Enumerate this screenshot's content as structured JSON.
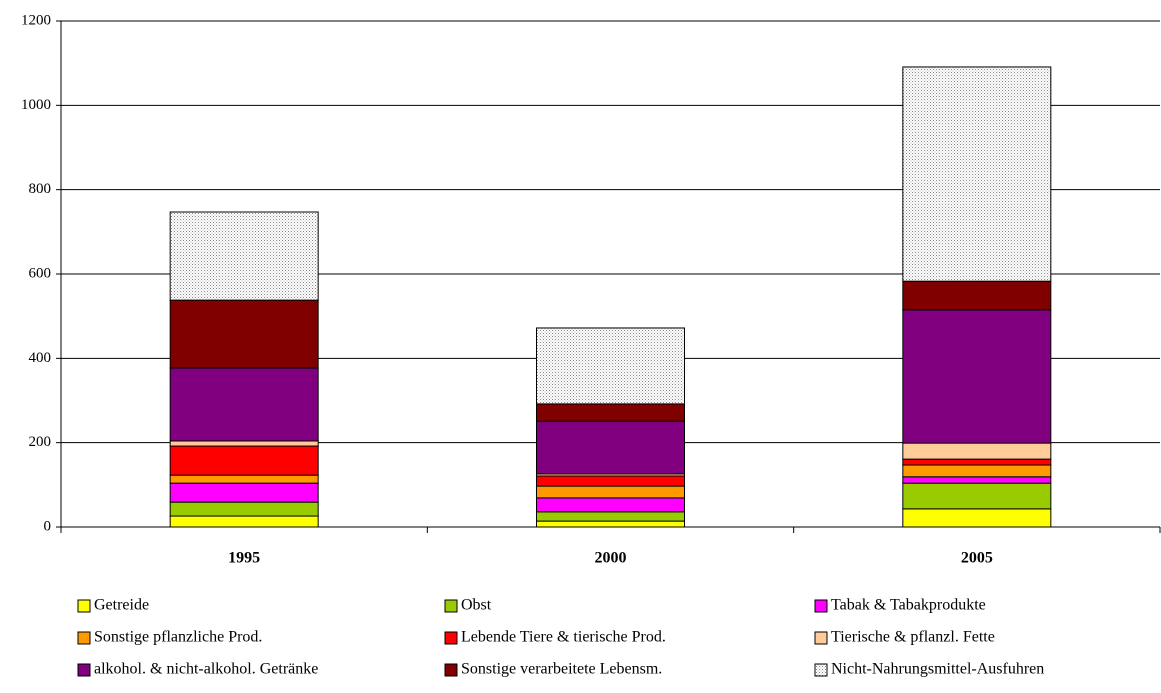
{
  "chart_data": {
    "type": "stacked-bar",
    "categories": [
      "1995",
      "2000",
      "2005"
    ],
    "series": [
      {
        "name": "Getreide",
        "color": "#ffff00",
        "values": [
          26,
          14,
          43
        ]
      },
      {
        "name": "Obst",
        "color": "#99cc00",
        "values": [
          33,
          22,
          61
        ]
      },
      {
        "name": "Tabak & Tabakprodukte",
        "color": "#ff00ff",
        "values": [
          45,
          33,
          15
        ]
      },
      {
        "name": "Sonstige pflanzliche Prod.",
        "color": "#ff9900",
        "values": [
          19,
          28,
          28
        ]
      },
      {
        "name": "Lebende Tiere & tierische Prod.",
        "color": "#ff0000",
        "values": [
          69,
          24,
          14
        ]
      },
      {
        "name": "Tierische & pflanzl. Fette",
        "color": "#ffcc99",
        "values": [
          12,
          5,
          38
        ]
      },
      {
        "name": "alkohol. & nicht-alkohol. Getränke",
        "color": "#800080",
        "values": [
          173,
          125,
          316
        ]
      },
      {
        "name": "Sonstige verarbeitete Lebensm.",
        "color": "#800000",
        "values": [
          161,
          41,
          68
        ]
      },
      {
        "name": "Nicht-Nahrungsmittel-Ausfuhren",
        "color": "#d4d4d4",
        "values": [
          209,
          180,
          508
        ]
      }
    ],
    "ylim": [
      0,
      1200
    ],
    "yticks": [
      0,
      200,
      400,
      600,
      800,
      1000,
      1200
    ],
    "grid": true
  }
}
